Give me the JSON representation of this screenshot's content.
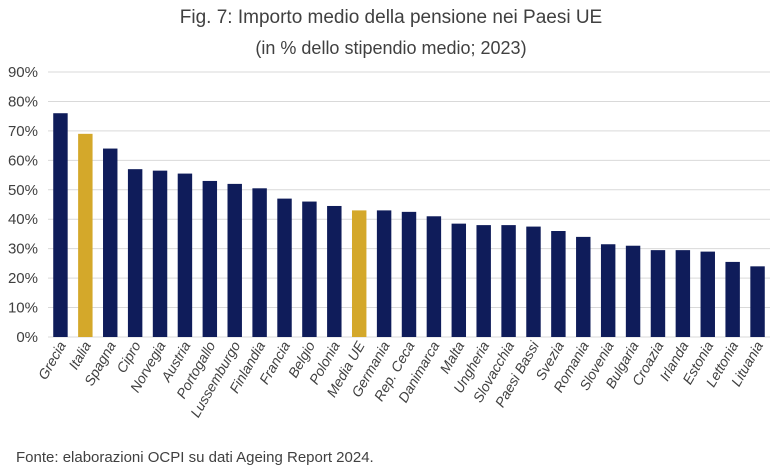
{
  "header": {
    "title": "Fig. 7: Importo medio della pensione nei Paesi UE",
    "subtitle": "(in % dello stipendio medio; 2023)"
  },
  "footer": {
    "source": "Fonte: elaborazioni OCPI su dati Ageing Report 2024."
  },
  "colors": {
    "bar": "#0f1c5a",
    "highlight": "#d4a82a",
    "grid": "#d9d9d9",
    "text": "#404040"
  },
  "chart_data": {
    "type": "bar",
    "title": "Fig. 7: Importo medio della pensione nei Paesi UE",
    "subtitle": "(in % dello stipendio medio; 2023)",
    "xlabel": "",
    "ylabel": "",
    "ylim": [
      0,
      90
    ],
    "yticks": [
      "0%",
      "10%",
      "20%",
      "30%",
      "40%",
      "50%",
      "60%",
      "70%",
      "80%",
      "90%"
    ],
    "grid": true,
    "categories": [
      "Grecia",
      "Italia",
      "Spagna",
      "Cipro",
      "Norvegia",
      "Austria",
      "Portogallo",
      "Lussemburgo",
      "Finlandia",
      "Francia",
      "Belgio",
      "Polonia",
      "Media UE",
      "Germania",
      "Rep. Ceca",
      "Danimarca",
      "Malta",
      "Ungheria",
      "Slovacchia",
      "Paesi Bassi",
      "Svezia",
      "Romania",
      "Slovenia",
      "Bulgaria",
      "Croazia",
      "Irlanda",
      "Estonia",
      "Lettonia",
      "Lituania"
    ],
    "values": [
      76,
      69,
      64,
      57,
      56.5,
      55.5,
      53,
      52,
      50.5,
      47,
      46,
      44.5,
      43,
      43,
      42.5,
      41,
      38.5,
      38,
      38,
      37.5,
      36,
      34,
      31.5,
      31,
      29.5,
      29.5,
      29,
      25.5,
      24
    ],
    "highlighted": [
      "Italia",
      "Media UE"
    ]
  }
}
